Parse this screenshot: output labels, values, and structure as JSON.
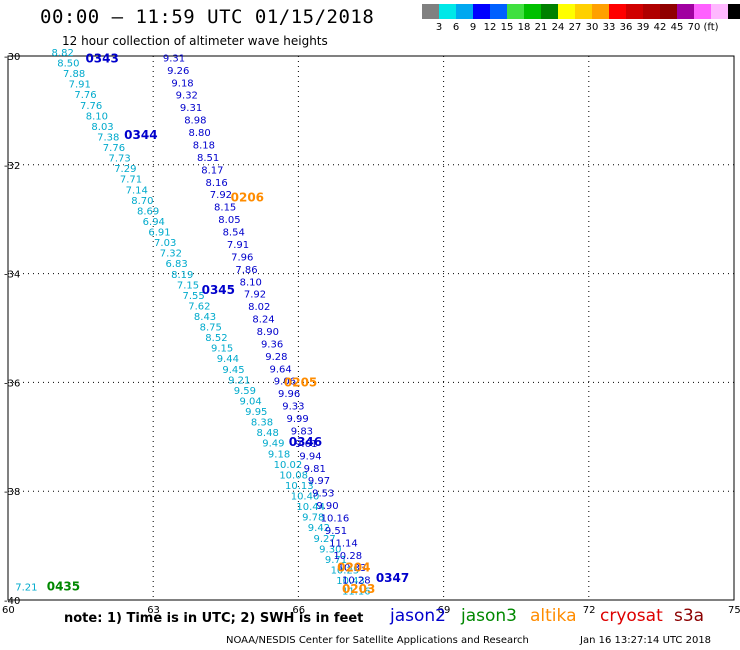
{
  "header": {
    "title": "00:00 – 11:59 UTC 01/15/2018",
    "subtitle": "12 hour collection of altimeter wave heights"
  },
  "legend": {
    "colors": [
      "#808080",
      "#00e8e8",
      "#00a8f0",
      "#0000ff",
      "#0060ff",
      "#40e040",
      "#00c000",
      "#008000",
      "#ffff00",
      "#ffd000",
      "#ffa000",
      "#ff0000",
      "#d00000",
      "#b00000",
      "#900000",
      "#a000a0",
      "#ff60ff",
      "#ffb8ff",
      "#000000"
    ],
    "tick_labels": [
      "3",
      "6",
      "9",
      "12",
      "15",
      "18",
      "21",
      "24",
      "27",
      "30",
      "33",
      "36",
      "39",
      "42",
      "45",
      "70",
      "(ft)"
    ]
  },
  "axes": {
    "y_labels": [
      "-30",
      "-32",
      "-34",
      "-36",
      "-38",
      "-40"
    ],
    "x_labels": [
      "60",
      "63",
      "66",
      "69",
      "72",
      "75"
    ]
  },
  "colors": {
    "jason2": "#0000cc",
    "jason2_light": "#00aacc",
    "jason3": "#008800",
    "altika": "#ff8c00",
    "cryosat": "#dd0000",
    "s3a": "#8b0000"
  },
  "tracks": [
    {
      "sat": "jason2",
      "shade": "light",
      "lon0": 60.9,
      "lat0": -30.0,
      "lon1": 66.9,
      "lat1": -39.9,
      "values": [
        "8.82",
        "8.50",
        "7.88",
        "7.91",
        "7.76",
        "7.76",
        "8.10",
        "8.03",
        "7.38",
        "7.76",
        "7.73",
        "7.29",
        "7.71",
        "7.14",
        "8.70",
        "8.69",
        "6.94",
        "6.91",
        "7.03",
        "7.32",
        "6.83",
        "8.19",
        "7.15",
        "7.55",
        "7.62",
        "8.43",
        "8.75",
        "8.52",
        "9.15",
        "9.44",
        "9.45",
        "9.21",
        "9.59",
        "9.04",
        "9.95",
        "8.38",
        "8.48",
        "9.49",
        "9.18",
        "10.02",
        "10.08",
        "10.13",
        "10.40",
        "10.44",
        "9.78",
        "9.42",
        "9.27",
        "9.30",
        "9.71",
        "10.25",
        "10.43",
        "11.16"
      ]
    },
    {
      "sat": "jason2",
      "shade": "dark",
      "lon0": 63.2,
      "lat0": -30.1,
      "lon1": 66.9,
      "lat1": -39.7,
      "values": [
        "9.31",
        "9.26",
        "9.18",
        "9.32",
        "9.31",
        "8.98",
        "8.80",
        "8.18",
        "8.51",
        "8.17",
        "8.16",
        "7.92",
        "8.15",
        "8.05",
        "8.54",
        "7.91",
        "7.96",
        "7.86",
        "8.10",
        "7.92",
        "8.02",
        "8.24",
        "8.90",
        "9.36",
        "9.28",
        "9.64",
        "9.06",
        "9.96",
        "9.33",
        "9.99",
        "9.83",
        "9.61",
        "9.94",
        "9.81",
        "9.97",
        "9.53",
        "9.90",
        "10.16",
        "9.51",
        "11.14",
        "10.28",
        "10.33",
        "10.28"
      ]
    }
  ],
  "passes": [
    {
      "label": "0343",
      "sat": "jason2",
      "lon": 61.6,
      "lat": -30.05
    },
    {
      "label": "0344",
      "sat": "jason2",
      "lon": 62.4,
      "lat": -31.45
    },
    {
      "label": "0345",
      "sat": "jason2",
      "lon": 64.0,
      "lat": -34.3
    },
    {
      "label": "0346",
      "sat": "jason2",
      "lon": 65.8,
      "lat": -37.1
    },
    {
      "label": "0347",
      "sat": "jason2",
      "lon": 67.6,
      "lat": -39.6
    },
    {
      "label": "0206",
      "sat": "altika",
      "lon": 64.6,
      "lat": -32.6
    },
    {
      "label": "0205",
      "sat": "altika",
      "lon": 65.7,
      "lat": -36.0
    },
    {
      "label": "0204",
      "sat": "altika",
      "lon": 66.8,
      "lat": -39.4
    },
    {
      "label": "0203",
      "sat": "altika",
      "lon": 66.9,
      "lat": -39.8
    },
    {
      "label": "0435",
      "sat": "jason3",
      "lon": 60.8,
      "lat": -39.75
    },
    {
      "label": "7.21",
      "sat": "jason2_light",
      "lon": 60.15,
      "lat": -39.75
    }
  ],
  "footer": {
    "note": "note:  1) Time is in UTC;  2) SWH is in feet",
    "sat_names": {
      "jason2": "jason2",
      "jason3": "jason3",
      "altika": "altika",
      "cryosat": "cryosat",
      "s3a": "s3a"
    },
    "credit": "NOAA/NESDIS Center for Satellite Applications and Research",
    "timestamp": "Jan 16 13:27:14 UTC 2018"
  }
}
